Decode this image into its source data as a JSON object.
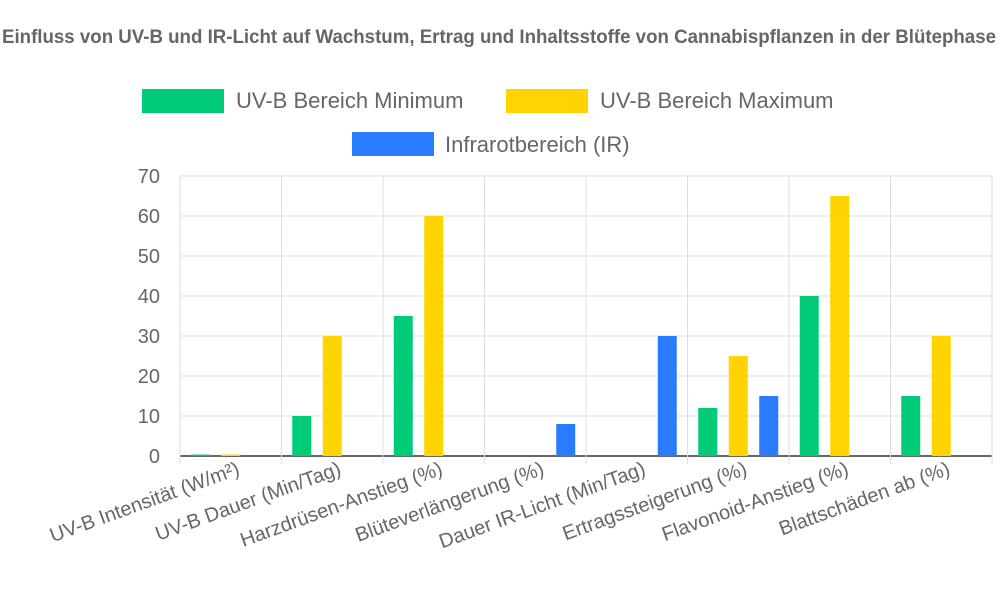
{
  "chart_data": {
    "type": "bar",
    "title": "Einfluss von UV-B und IR-Licht auf Wachstum, Ertrag und Inhaltsstoffe von Cannabispflanzen in der Blütephase",
    "categories": [
      "UV-B Intensität (W/m²)",
      "UV-B Dauer (Min/Tag)",
      "Harzdrüsen-Anstieg (%)",
      "Blüteverlängerung (%)",
      "Dauer IR-Licht (Min/Tag)",
      "Ertragssteigerung (%)",
      "Flavonoid-Anstieg (%)",
      "Blattschäden ab (%)"
    ],
    "series": [
      {
        "name": "UV-B Bereich Minimum",
        "color": "#00cc77",
        "values": [
          0.1,
          10,
          35,
          null,
          null,
          12,
          40,
          15
        ]
      },
      {
        "name": "UV-B Bereich Maximum",
        "color": "#ffd400",
        "values": [
          0.3,
          30,
          60,
          null,
          null,
          25,
          65,
          30
        ]
      },
      {
        "name": "Infrarotbereich (IR)",
        "color": "#2a7bff",
        "values": [
          null,
          null,
          null,
          8,
          30,
          15,
          null,
          null
        ]
      }
    ],
    "ylim": [
      0,
      70
    ],
    "yticks": [
      0,
      10,
      20,
      30,
      40,
      50,
      60,
      70
    ],
    "grid": true,
    "legend_position": "top"
  }
}
